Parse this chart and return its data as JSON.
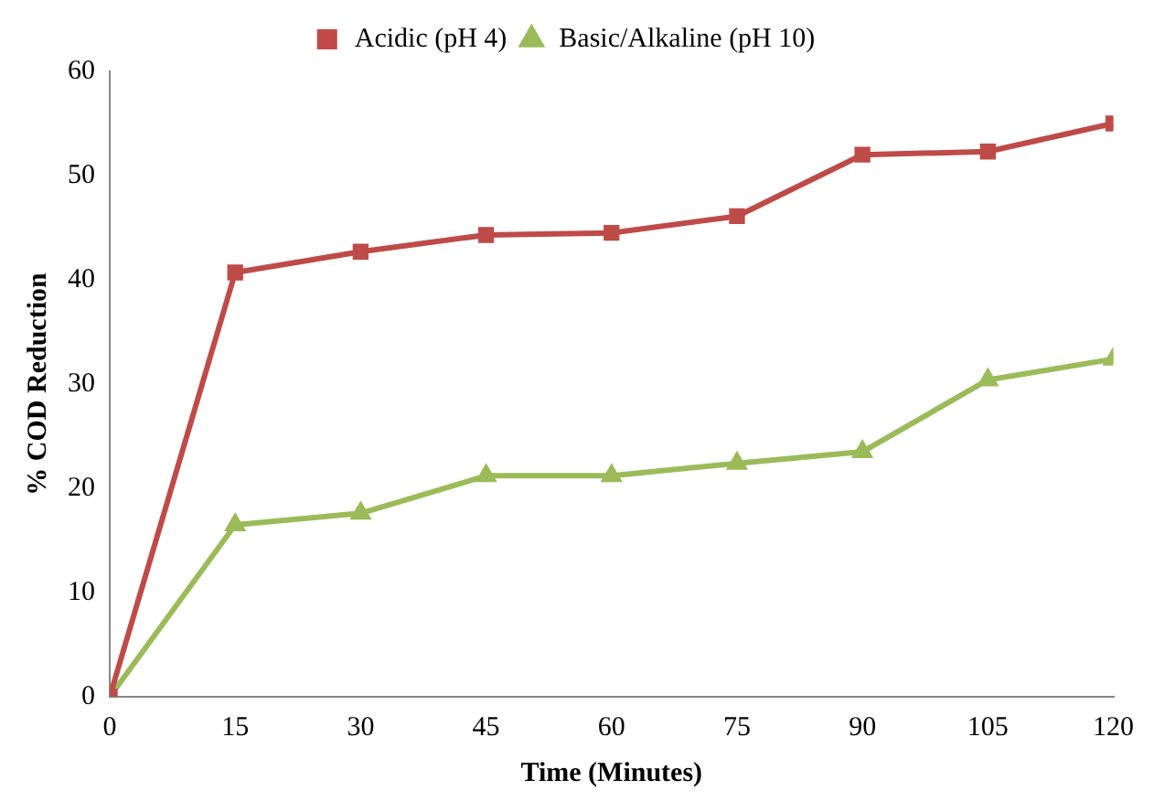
{
  "chart_data": {
    "type": "line",
    "xlabel": "Time (Minutes)",
    "ylabel": "% COD Reduction",
    "x": [
      0,
      15,
      30,
      45,
      60,
      75,
      90,
      105,
      120
    ],
    "series": [
      {
        "name": "Acidic (pH 4)",
        "color": "#be4b48",
        "marker": "square",
        "values": [
          0,
          40.7,
          42.7,
          44.3,
          44.5,
          46.1,
          52.0,
          52.3,
          55.0
        ]
      },
      {
        "name": "Basic/Alkaline (pH 10)",
        "color": "#9bbb59",
        "marker": "triangle",
        "values": [
          0,
          16.5,
          17.6,
          21.2,
          21.2,
          22.4,
          23.5,
          30.4,
          32.4
        ]
      }
    ],
    "xlim": [
      0,
      120
    ],
    "xticks": [
      0,
      15,
      30,
      45,
      60,
      75,
      90,
      105,
      120
    ],
    "ylim": [
      0,
      60
    ],
    "yticks": [
      0,
      10,
      20,
      30,
      40,
      50,
      60
    ],
    "grid": false,
    "legend": "top",
    "line_style": "solid"
  }
}
